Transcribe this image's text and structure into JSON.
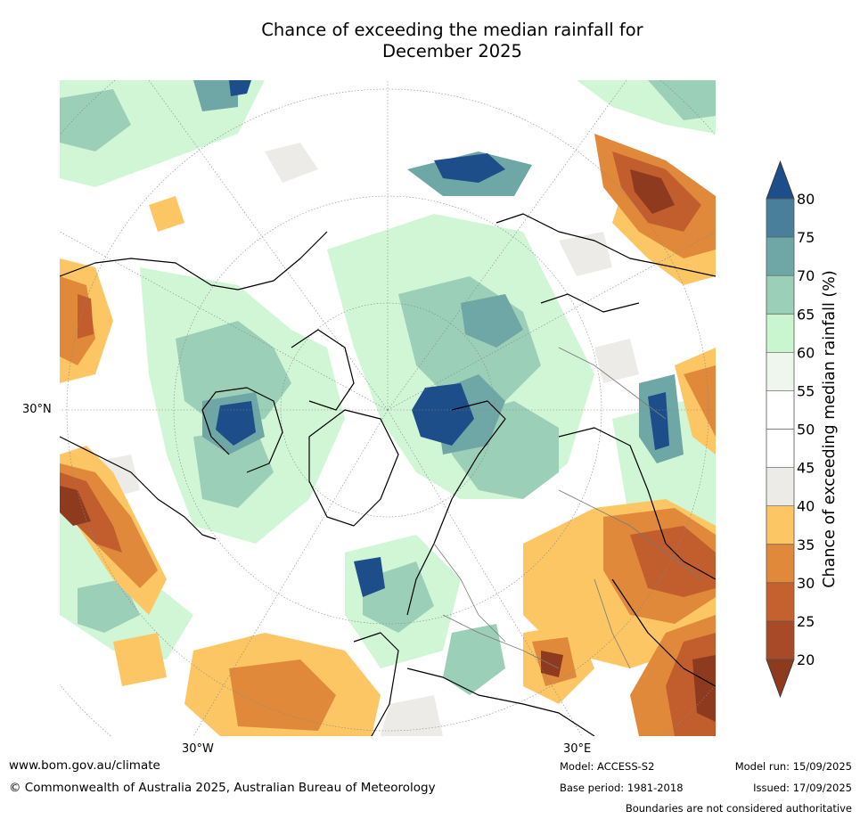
{
  "title_line1": "Chance of exceeding the median rainfall for",
  "title_line2": "December 2025",
  "map": {
    "lat_label": "30°N",
    "lon_labels": [
      "30°W",
      "30°E"
    ],
    "colors": {
      "land_outline": "#000000",
      "graticule": "#888888",
      "wet_dark": "#1d4e89",
      "wet_mid": "#4a7f9b",
      "wet_teal": "#6fa6a6",
      "wet_light": "#9ccfb8",
      "wet_pale": "#c9f5cf",
      "neutral": "#ffffff",
      "dry_pale": "#ecebe7",
      "dry_yellow": "#fbc663",
      "dry_orange": "#e0893b",
      "dry_rust": "#c25d2d",
      "dry_dark": "#8e3a1e"
    }
  },
  "chart_data": {
    "type": "colorbar",
    "label": "Chance of exceeding median rainfall (%)",
    "ticks": [
      20,
      25,
      30,
      35,
      40,
      45,
      50,
      55,
      60,
      65,
      70,
      75,
      80
    ],
    "range": [
      20,
      80
    ],
    "extend": "both",
    "bins": [
      {
        "from": 20,
        "to": 25,
        "color": "#a84a28"
      },
      {
        "from": 25,
        "to": 30,
        "color": "#c4612f"
      },
      {
        "from": 30,
        "to": 35,
        "color": "#e0893b"
      },
      {
        "from": 35,
        "to": 40,
        "color": "#fbc663"
      },
      {
        "from": 40,
        "to": 45,
        "color": "#ecebe7"
      },
      {
        "from": 45,
        "to": 50,
        "color": "#ffffff"
      },
      {
        "from": 50,
        "to": 55,
        "color": "#ffffff"
      },
      {
        "from": 55,
        "to": 60,
        "color": "#eef7ec"
      },
      {
        "from": 60,
        "to": 65,
        "color": "#c9f5cf"
      },
      {
        "from": 65,
        "to": 70,
        "color": "#9ccfb8"
      },
      {
        "from": 70,
        "to": 75,
        "color": "#6fa6a6"
      },
      {
        "from": 75,
        "to": 80,
        "color": "#4a7f9b"
      }
    ],
    "under_color": "#8e3a1e",
    "over_color": "#1d4e89"
  },
  "footer": {
    "website": "www.bom.gov.au/climate",
    "copyright": "© Commonwealth of Australia 2025, Australian Bureau of Meteorology",
    "model": "Model: ACCESS-S2",
    "base_period": "Base period: 1981-2018",
    "model_run": "Model run: 15/09/2025",
    "issued": "Issued: 17/09/2025",
    "disclaimer": "Boundaries are not considered authoritative"
  }
}
